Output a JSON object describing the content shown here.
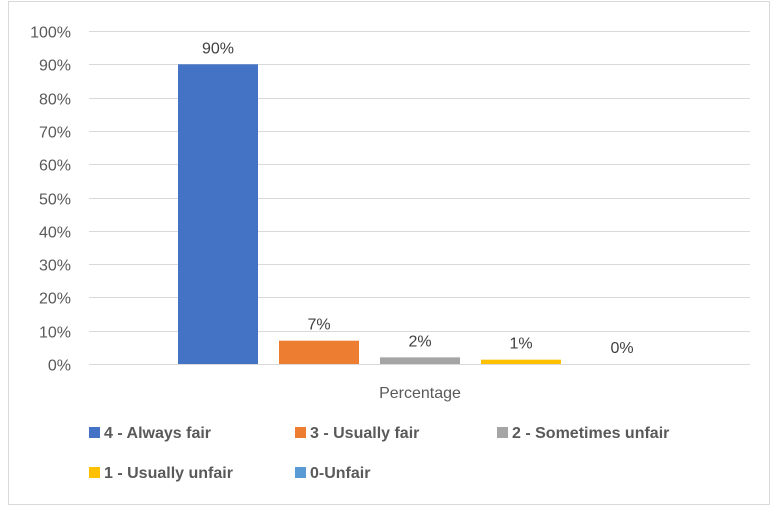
{
  "chart_data": {
    "type": "bar",
    "categories": [
      "Percentage"
    ],
    "series": [
      {
        "name": "4 - Always fair",
        "values": [
          90
        ],
        "label": "90%",
        "color": "#4472c4"
      },
      {
        "name": "3 - Usually fair",
        "values": [
          7
        ],
        "label": "7%",
        "color": "#ed7d31"
      },
      {
        "name": "2 - Sometimes unfair",
        "values": [
          2
        ],
        "label": "2%",
        "color": "#a5a5a5"
      },
      {
        "name": "1 - Usually unfair",
        "values": [
          1.3
        ],
        "label": "1%",
        "color": "#ffc000"
      },
      {
        "name": "0-Unfair",
        "values": [
          0
        ],
        "label": "0%",
        "color": "#5b9bd5"
      }
    ],
    "xlabel": "Percentage",
    "ylabel": "",
    "ylim": [
      0,
      100
    ],
    "yticks": [
      "0%",
      "10%",
      "20%",
      "30%",
      "40%",
      "50%",
      "60%",
      "70%",
      "80%",
      "90%",
      "100%"
    ],
    "grid": true,
    "legend": "bottom"
  }
}
